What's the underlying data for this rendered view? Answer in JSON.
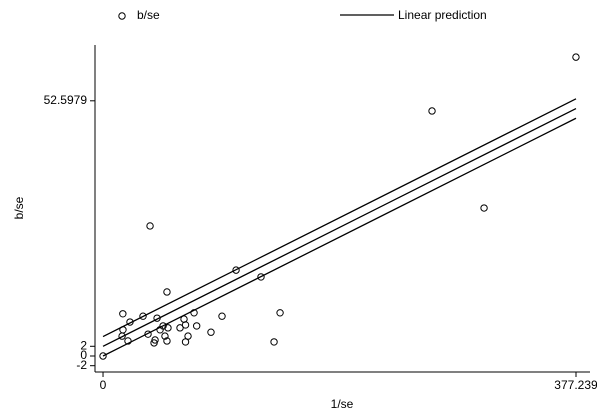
{
  "chart_data": {
    "type": "scatter",
    "xlabel": "1/se",
    "ylabel": "b/se",
    "xlim": [
      -6.4,
      388.4
    ],
    "ylim": [
      -3.3,
      64.1
    ],
    "xticks": [
      0,
      377.239
    ],
    "yticks": [
      -2,
      0,
      2,
      52.5979
    ],
    "series": [
      {
        "name": "b/se",
        "color": "#000000",
        "x": [
          377.2,
          262.4,
          303.9,
          37.5,
          106.1,
          126.0,
          51.0,
          141.2,
          15.8,
          31.9,
          94.9,
          43.1,
          64.6,
          72.6,
          21.5,
          15.9,
          74.7,
          65.8,
          47.9,
          51.8,
          45.5,
          35.9,
          15.2,
          86.1,
          67.8,
          19.9,
          41.5,
          51.0,
          65.8,
          40.7,
          136.4,
          0,
          61.4,
          49.4
        ],
        "values": [
          61.6,
          50.5,
          30.5,
          26.8,
          17.7,
          16.3,
          13.2,
          8.9,
          8.7,
          8.2,
          8.2,
          7.8,
          7.6,
          8.9,
          7.0,
          5.4,
          6.2,
          6.4,
          6.2,
          5.8,
          5.4,
          4.5,
          4.1,
          4.9,
          4.1,
          3.1,
          3.3,
          3.1,
          2.9,
          2.7,
          2.9,
          0,
          5.8,
          4.1
        ]
      },
      {
        "name": "Linear prediction",
        "color": "#000000",
        "x": [
          0,
          377.239
        ],
        "values": [
          2,
          51
        ]
      }
    ],
    "bands": [
      {
        "color": "#000000",
        "x": [
          0,
          377.239
        ],
        "values": [
          4,
          53
        ]
      },
      {
        "color": "#000000",
        "x": [
          0,
          377.239
        ],
        "values": [
          0,
          49
        ]
      }
    ]
  }
}
